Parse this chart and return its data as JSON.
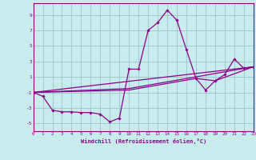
{
  "background_color": "#c8ecec",
  "grid_color": "#a0c8c8",
  "line_color": "#8b008b",
  "marker_color": "#8b008b",
  "xlabel": "Windchill (Refroidissement éolien,°C)",
  "xlim": [
    0,
    23
  ],
  "ylim": [
    -6,
    10.5
  ],
  "xticks": [
    0,
    1,
    2,
    3,
    4,
    5,
    6,
    7,
    8,
    9,
    10,
    11,
    12,
    13,
    14,
    15,
    16,
    17,
    18,
    19,
    20,
    21,
    22,
    23
  ],
  "yticks": [
    -5,
    -3,
    -1,
    1,
    3,
    5,
    7,
    9
  ],
  "series": [
    [
      0,
      -1.0
    ],
    [
      1,
      -1.5
    ],
    [
      2,
      -3.3
    ],
    [
      3,
      -3.5
    ],
    [
      4,
      -3.5
    ],
    [
      5,
      -3.6
    ],
    [
      6,
      -3.6
    ],
    [
      7,
      -3.8
    ],
    [
      8,
      -4.8
    ],
    [
      9,
      -4.3
    ],
    [
      10,
      2.0
    ],
    [
      11,
      2.0
    ],
    [
      12,
      7.0
    ],
    [
      13,
      8.0
    ],
    [
      14,
      9.6
    ],
    [
      15,
      8.3
    ],
    [
      16,
      4.5
    ],
    [
      17,
      0.8
    ],
    [
      18,
      -0.7
    ],
    [
      19,
      0.5
    ],
    [
      20,
      1.3
    ],
    [
      21,
      3.3
    ],
    [
      22,
      2.1
    ],
    [
      23,
      2.3
    ]
  ],
  "line2": [
    [
      0,
      -1.0
    ],
    [
      23,
      2.3
    ]
  ],
  "line3": [
    [
      0,
      -1.0
    ],
    [
      10,
      -0.5
    ],
    [
      23,
      2.3
    ]
  ],
  "line4": [
    [
      0,
      -1.0
    ],
    [
      10,
      -0.7
    ],
    [
      17,
      0.8
    ],
    [
      19,
      0.5
    ],
    [
      23,
      2.3
    ]
  ]
}
